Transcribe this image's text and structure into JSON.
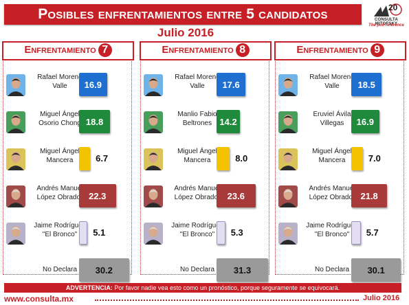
{
  "header": {
    "title": "Posibles enfrentamientos entre 5 candidatos",
    "subtitle": "Julio 2016",
    "logo_brand": "CONSULTA MITOFSKY",
    "logo_tagline": "The poll reference",
    "logo_years": "20"
  },
  "colors": {
    "accent": "#c62026",
    "blue": "#1f6fd0",
    "green": "#1f8a3c",
    "yellow": "#f3c300",
    "maroon": "#a83a3a",
    "lavender": "#e4def2",
    "gray": "#9a9a9a"
  },
  "chart_data": [
    {
      "type": "bar",
      "label_prefix": "Enfrentamiento",
      "number": "7",
      "categories": [
        "Rafael Moreno Valle",
        "Miguel Ángel Osorio Chong",
        "Miguel Ángel Mancera",
        "Andrés Manuel López Obrador",
        "Jaime Rodríguez \"El Bronco\"",
        "No Declara"
      ],
      "name_lines": [
        [
          "Rafael Moreno",
          "Valle"
        ],
        [
          "Miguel Ángel",
          "Osorio Chong"
        ],
        [
          "Miguel Ángel",
          "Mancera"
        ],
        [
          "Andrés Manuel",
          "López Obrador"
        ],
        [
          "Jaime Rodríguez",
          "\"El Bronco\""
        ],
        [
          "No Declara"
        ]
      ],
      "values": [
        16.9,
        18.8,
        6.7,
        22.3,
        5.1,
        30.2
      ],
      "value_labels": [
        "16.9",
        "18.8",
        "6.7",
        "22.3",
        "5.1",
        "30.2"
      ],
      "bar_colors": [
        "blue",
        "green",
        "yellow",
        "maroon",
        "lavender",
        "gray"
      ]
    },
    {
      "type": "bar",
      "label_prefix": "Enfrentamiento",
      "number": "8",
      "categories": [
        "Rafael Moreno Valle",
        "Manlio Fabio Beltrones",
        "Miguel Ángel Mancera",
        "Andrés Manuel López Obrador",
        "Jaime Rodríguez \"El Bronco\"",
        "No Declara"
      ],
      "name_lines": [
        [
          "Rafael Moreno",
          "Valle"
        ],
        [
          "Manlio Fabio",
          "Beltrones"
        ],
        [
          "Miguel Ángel",
          "Mancera"
        ],
        [
          "Andrés Manuel",
          "López Obrador"
        ],
        [
          "Jaime Rodríguez",
          "\"El Bronco\""
        ],
        [
          "No Declara"
        ]
      ],
      "values": [
        17.6,
        14.2,
        8.0,
        23.6,
        5.3,
        31.3
      ],
      "value_labels": [
        "17.6",
        "14.2",
        "8.0",
        "23.6",
        "5.3",
        "31.3"
      ],
      "bar_colors": [
        "blue",
        "green",
        "yellow",
        "maroon",
        "lavender",
        "gray"
      ]
    },
    {
      "type": "bar",
      "label_prefix": "Enfrentamiento",
      "number": "9",
      "categories": [
        "Rafael Moreno Valle",
        "Eruviel Ávila Villegas",
        "Miguel Ángel Mancera",
        "Andrés Manuel López Obrador",
        "Jaime Rodríguez \"El Bronco\"",
        "No Declara"
      ],
      "name_lines": [
        [
          "Rafael Moreno",
          "Valle"
        ],
        [
          "Eruviel Ávila",
          "Villegas"
        ],
        [
          "Miguel Ángel",
          "Mancera"
        ],
        [
          "Andrés Manuel",
          "López Obrador"
        ],
        [
          "Jaime Rodríguez",
          "\"El Bronco\""
        ],
        [
          "No Declara"
        ]
      ],
      "values": [
        18.5,
        16.9,
        7.0,
        21.8,
        5.7,
        30.1
      ],
      "value_labels": [
        "18.5",
        "16.9",
        "7.0",
        "21.8",
        "5.7",
        "30.1"
      ],
      "bar_colors": [
        "blue",
        "green",
        "yellow",
        "maroon",
        "lavender",
        "gray"
      ]
    }
  ],
  "footer": {
    "warning_label": "ADVERTENCIA:",
    "warning_text": " Por favor nadie vea esto como un pronóstico, porque seguramente se equivocará.",
    "url": "www.consulta.mx",
    "date": "Julio 2016"
  }
}
